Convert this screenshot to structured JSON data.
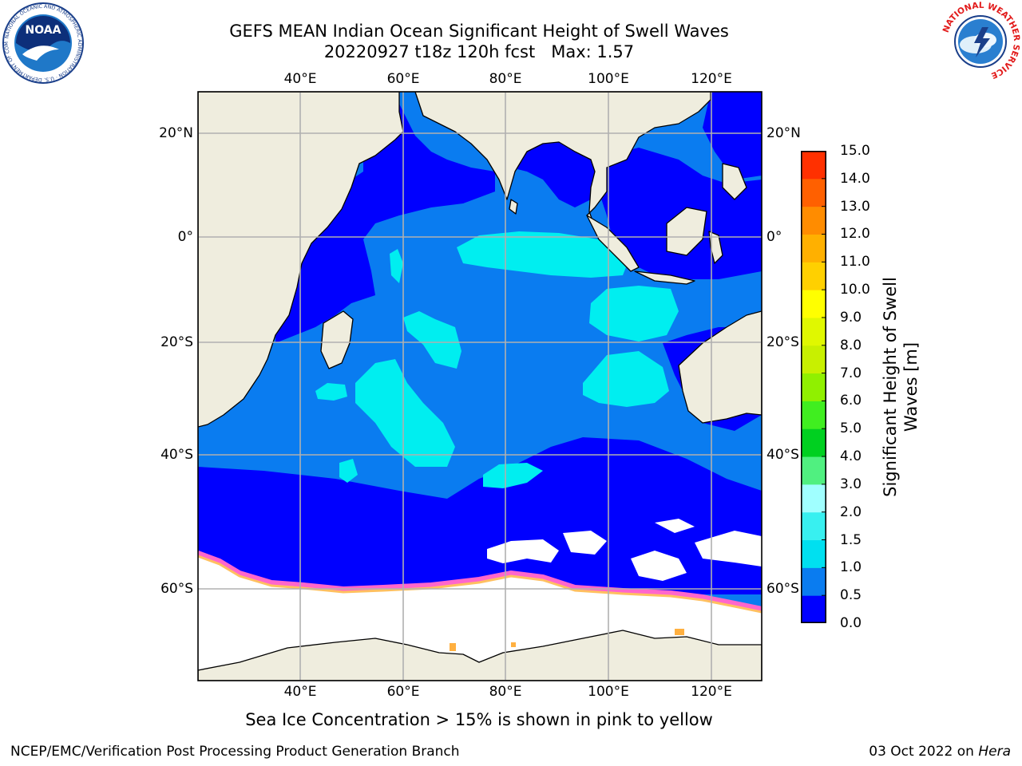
{
  "header": {
    "title_line1": "GEFS MEAN Indian Ocean Significant Height of Swell Waves",
    "title_line2": "20220927 t18z 120h fcst   Max: 1.57"
  },
  "logos": {
    "noaa_text": "NOAA",
    "noaa_ring": "NATIONAL OCEANIC AND ATMOSPHERIC ADMINISTRATION · U.S. DEPARTMENT OF COMMERCE",
    "nws_ring": "NATIONAL WEATHER SERVICE"
  },
  "map": {
    "lon_ticks": [
      "40°E",
      "60°E",
      "80°E",
      "100°E",
      "120°E"
    ],
    "lat_ticks": [
      "20°N",
      "0°",
      "20°S",
      "40°S",
      "60°S"
    ],
    "colors": {
      "land": "#efedde",
      "ice": "#ffffff",
      "grid": "#b0b0b0"
    }
  },
  "colorbar": {
    "label_line1": "Significant Height of Swell",
    "label_line2": "Waves [m]",
    "ticks": [
      "0.0",
      "0.5",
      "1.0",
      "1.5",
      "2.0",
      "3.0",
      "4.0",
      "5.0",
      "6.0",
      "7.0",
      "8.0",
      "9.0",
      "10.0",
      "11.0",
      "12.0",
      "13.0",
      "14.0",
      "15.0"
    ],
    "colors": [
      "#0000ff",
      "#0a7cf0",
      "#00e0f0",
      "#38f0f0",
      "#a0ffff",
      "#50f080",
      "#00d020",
      "#40ee20",
      "#90f000",
      "#c8f000",
      "#e0f800",
      "#ffff00",
      "#ffd000",
      "#ffb000",
      "#ff8c00",
      "#ff6000",
      "#ff3000",
      "#ff0000"
    ]
  },
  "caption": "Sea Ice Concentration > 15% is shown in pink to yellow",
  "footer": {
    "left": "NCEP/EMC/Verification Post Processing Product Generation Branch",
    "right_prefix": "03 Oct 2022 on ",
    "right_host": "Hera"
  }
}
